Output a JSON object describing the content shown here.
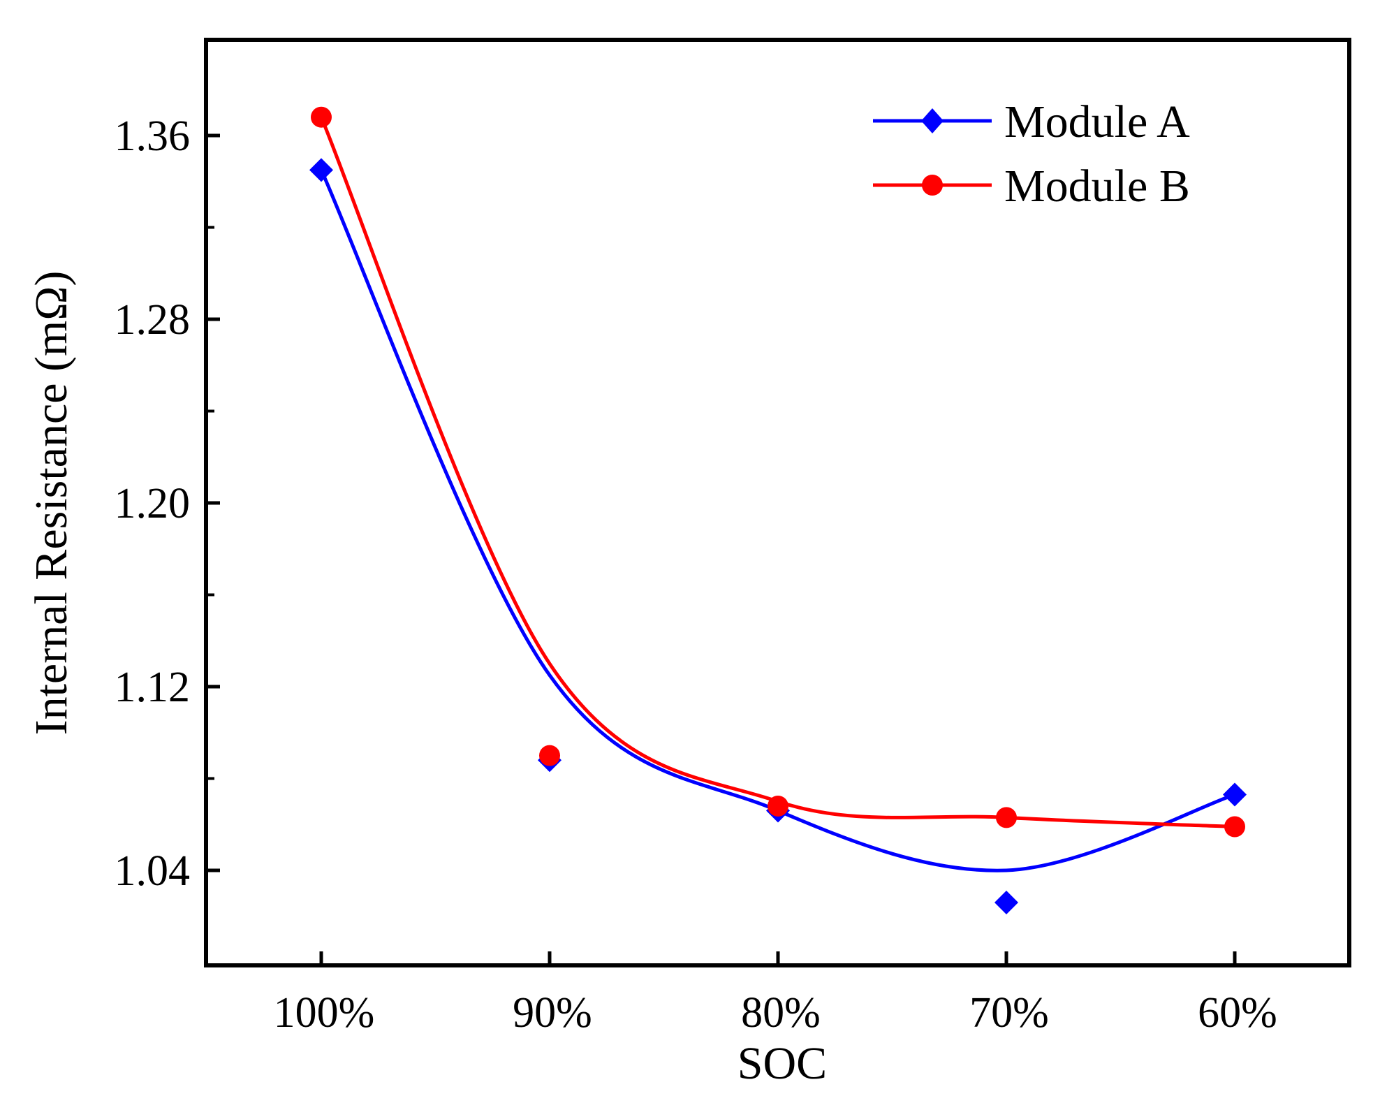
{
  "chart_data": {
    "type": "line",
    "title": "",
    "xlabel": "SOC",
    "ylabel": "Internal Resistance (mΩ)",
    "categories": [
      "100%",
      "90%",
      "80%",
      "70%",
      "60%"
    ],
    "ylim": [
      1.0,
      1.4
    ],
    "yticks": [
      1.04,
      1.12,
      1.2,
      1.28,
      1.36
    ],
    "ytick_labels": [
      "1.04",
      "1.12",
      "1.20",
      "1.28",
      "1.36"
    ],
    "grid": false,
    "legend_position": "top-right",
    "series": [
      {
        "name": "Module A",
        "color": "#0000ff",
        "marker": "diamond",
        "values": [
          1.345,
          1.088,
          1.066,
          1.026,
          1.073
        ],
        "fit_curve": [
          1.345,
          1.125,
          1.066,
          1.04,
          1.073
        ]
      },
      {
        "name": "Module B",
        "color": "#ff0000",
        "marker": "circle",
        "values": [
          1.368,
          1.09,
          1.068,
          1.063,
          1.059
        ],
        "fit_curve": [
          1.368,
          1.13,
          1.07,
          1.063,
          1.059
        ]
      }
    ]
  }
}
